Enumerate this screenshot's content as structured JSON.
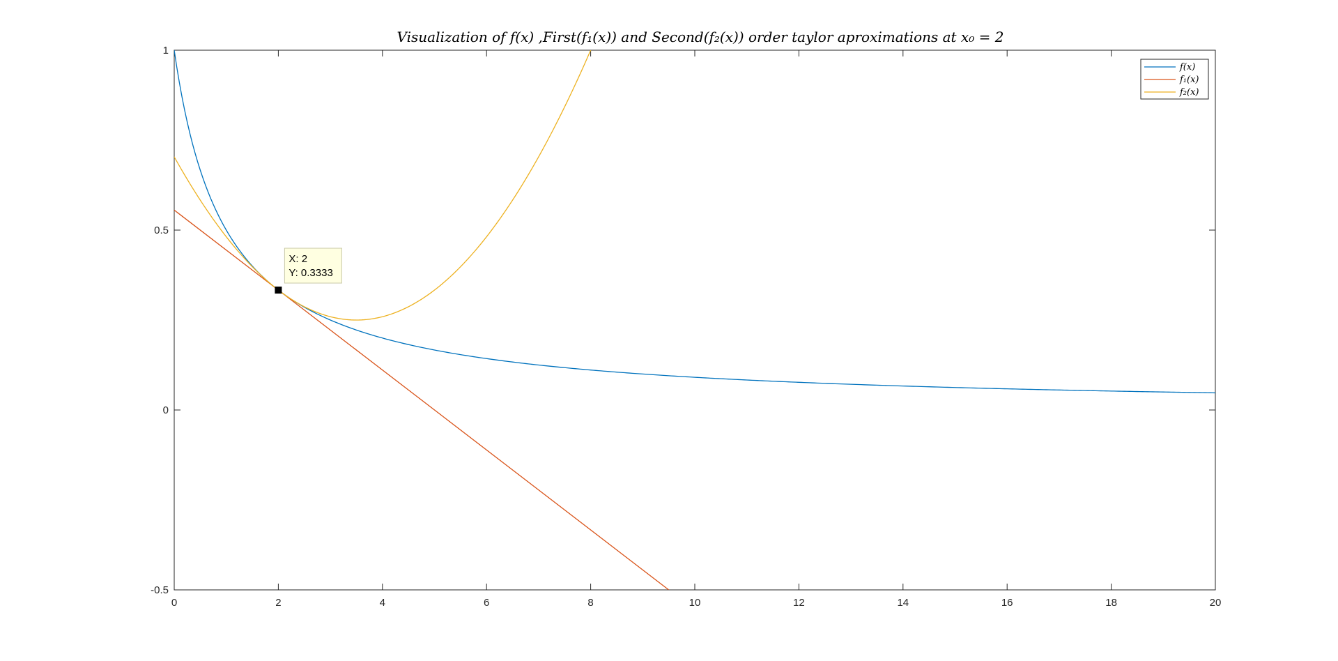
{
  "chart_data": {
    "type": "line",
    "title": "Visualization of f(x) ,First(f₁(x)) and Second(f₂(x)) order taylor aproximations at x₀ = 2",
    "xlabel": "",
    "ylabel": "",
    "xlim": [
      0,
      20
    ],
    "ylim": [
      -0.5,
      1
    ],
    "x_ticks": [
      "0",
      "2",
      "4",
      "6",
      "8",
      "10",
      "12",
      "14",
      "16",
      "18",
      "20"
    ],
    "y_ticks": [
      "-0.5",
      "0",
      "0.5",
      "1"
    ],
    "grid": false,
    "legend_position": "top-right",
    "series": [
      {
        "name": "f(x)",
        "color": "#0072BD",
        "x": [
          0,
          0.1,
          0.2,
          0.3,
          0.4,
          0.5,
          0.6,
          0.8,
          1.0,
          1.2,
          1.5,
          2.0,
          2.5,
          3.0,
          3.5,
          4.0,
          5.0,
          6.0,
          7.0,
          8.0,
          9.0,
          10.0,
          11.0,
          12.0,
          13.0,
          14.0,
          15.0,
          16.0,
          17.0,
          18.0,
          19.0,
          20.0
        ],
        "y": [
          1.0,
          0.9091,
          0.8333,
          0.7692,
          0.7143,
          0.6667,
          0.625,
          0.5556,
          0.5,
          0.4545,
          0.4,
          0.3333,
          0.2857,
          0.25,
          0.2222,
          0.2,
          0.1667,
          0.1429,
          0.125,
          0.1111,
          0.1,
          0.0909,
          0.0833,
          0.0769,
          0.0714,
          0.0667,
          0.0625,
          0.0588,
          0.0556,
          0.0526,
          0.05,
          0.0476
        ]
      },
      {
        "name": "f₁(x)",
        "color": "#D95319",
        "x": [
          0,
          2,
          9.5
        ],
        "y": [
          0.5556,
          0.3333,
          -0.5
        ]
      },
      {
        "name": "f₂(x)",
        "color": "#EDB120",
        "x": [
          0,
          0.5,
          1.0,
          1.5,
          2.0,
          2.5,
          3.0,
          3.5,
          4.0,
          4.5,
          5.0,
          5.5,
          6.0,
          6.5,
          7.0,
          7.5,
          7.99
        ],
        "y": [
          0.7037,
          0.5787,
          0.4815,
          0.412,
          0.3333,
          0.3009,
          0.2593,
          0.25,
          0.2593,
          0.287,
          0.3333,
          0.3981,
          0.4815,
          0.5833,
          0.7037,
          0.8426,
          0.9981
        ]
      }
    ],
    "annotations": [
      {
        "x": 2,
        "y": 0.3333,
        "x_text": "X: 2",
        "y_text": "Y: 0.3333"
      }
    ]
  }
}
